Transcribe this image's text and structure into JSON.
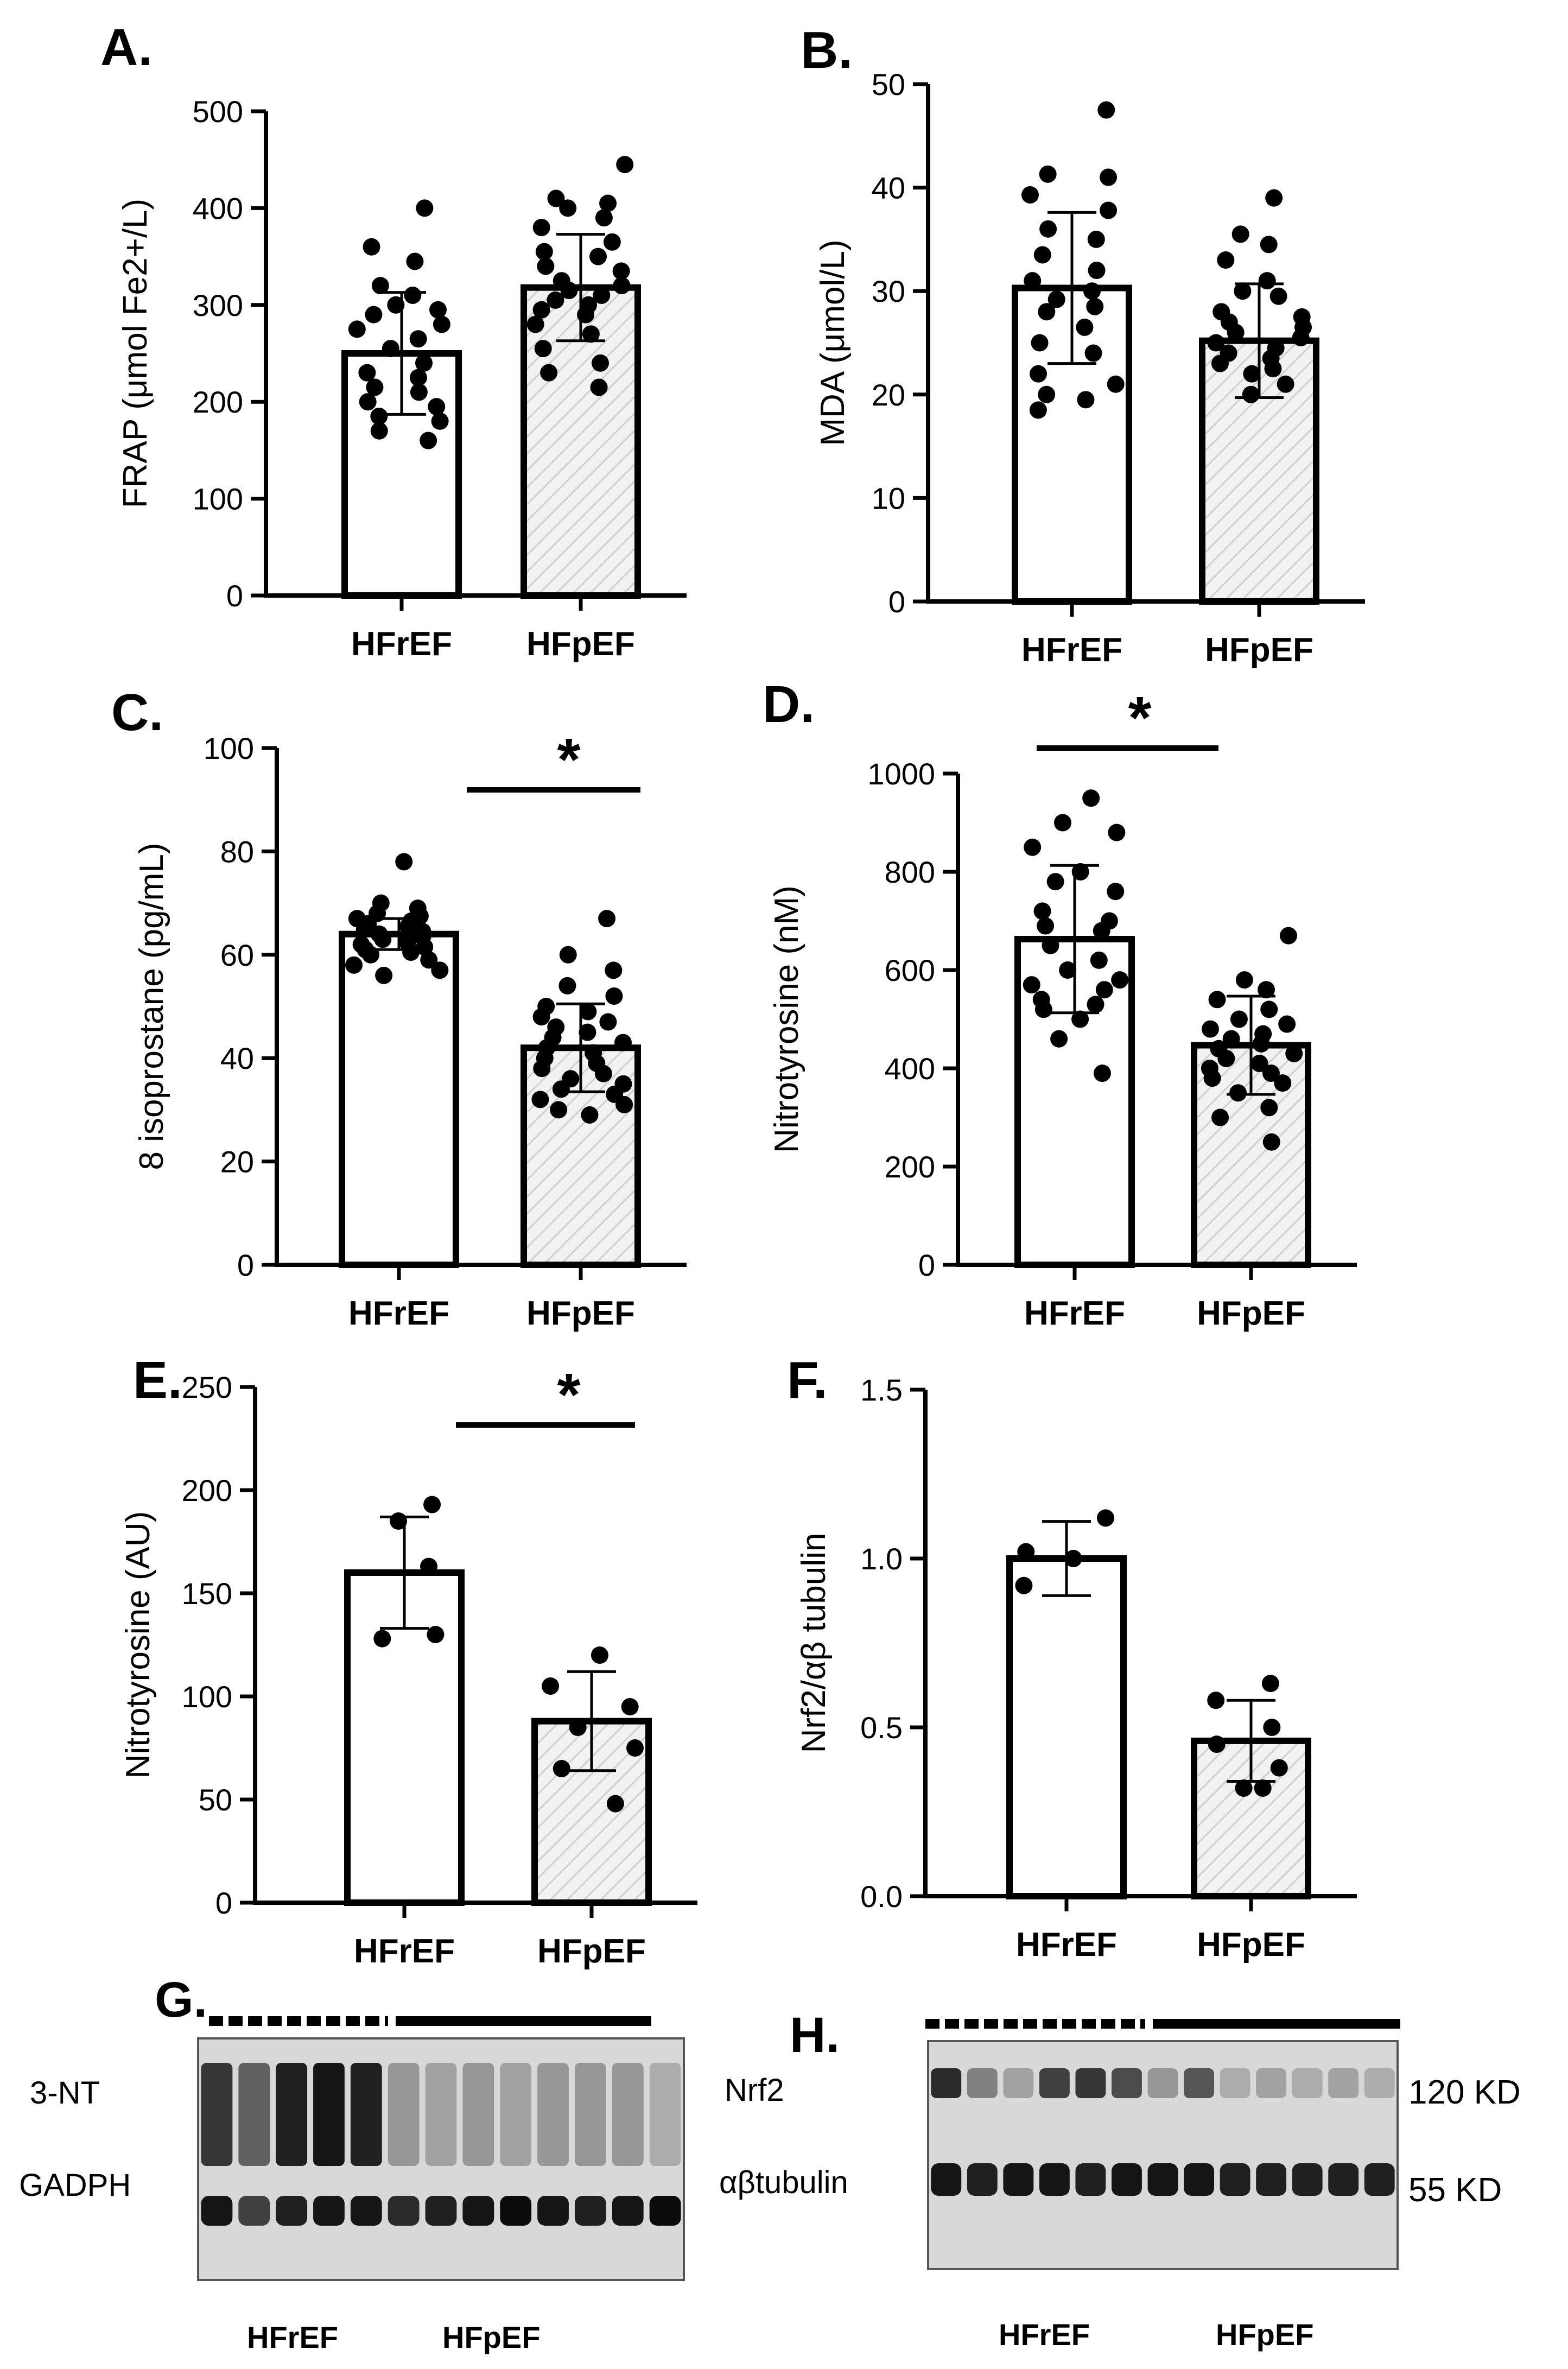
{
  "figure": {
    "group_labels": [
      "HFrEF",
      "HFpEF"
    ],
    "colors": {
      "ink": "#000000",
      "hatch_fill": "#f2f2f2",
      "hatch_stroke": "#cfcfcf",
      "blot_bg": "#d8d8d8"
    }
  },
  "chart_data": [
    {
      "panel": "A.",
      "type": "bar",
      "ylabel": "FRAP (μmol Fe2+/L)",
      "categories": [
        "HFrEF",
        "HFpEF"
      ],
      "ylim": [
        0,
        500
      ],
      "yticks": [
        0,
        100,
        200,
        300,
        400,
        500
      ],
      "tick_labels": [
        "0",
        "100",
        "200",
        "300",
        "400",
        "500"
      ],
      "values": [
        250,
        318
      ],
      "sd": [
        63,
        55
      ],
      "significance": null,
      "points": [
        [
          400,
          360,
          345,
          320,
          310,
          300,
          295,
          290,
          280,
          275,
          265,
          255,
          240,
          230,
          225,
          215,
          210,
          200,
          195,
          185,
          180,
          170,
          160
        ],
        [
          445,
          410,
          405,
          400,
          390,
          380,
          365,
          355,
          350,
          340,
          335,
          325,
          320,
          315,
          310,
          305,
          300,
          295,
          290,
          280,
          270,
          255,
          240,
          230,
          215
        ]
      ]
    },
    {
      "panel": "B.",
      "type": "bar",
      "ylabel": "MDA (μmol/L)",
      "categories": [
        "HFrEF",
        "HFpEF"
      ],
      "ylim": [
        0,
        50
      ],
      "yticks": [
        0,
        10,
        20,
        30,
        40,
        50
      ],
      "tick_labels": [
        "0",
        "10",
        "20",
        "30",
        "40",
        "50"
      ],
      "values": [
        30.3,
        25.2
      ],
      "sd": [
        7.3,
        5.5
      ],
      "significance": null,
      "points": [
        [
          47.5,
          41.3,
          41.0,
          39.3,
          37.8,
          36.0,
          35.0,
          33.5,
          32.0,
          31.0,
          30.0,
          29.2,
          28.5,
          28.0,
          26.5,
          25.0,
          24.0,
          22.0,
          21.0,
          20.0,
          19.5,
          18.5
        ],
        [
          39.0,
          35.5,
          34.5,
          33.0,
          31.0,
          30.0,
          29.5,
          28.0,
          27.5,
          27.0,
          26.5,
          26.0,
          25.5,
          25.0,
          24.5,
          24.0,
          23.5,
          23.0,
          22.5,
          22.0,
          21.0,
          20.0
        ]
      ]
    },
    {
      "panel": "C.",
      "type": "bar",
      "ylabel": "8 isoprostane (pg/mL)",
      "categories": [
        "HFrEF",
        "HFpEF"
      ],
      "ylim": [
        0,
        100
      ],
      "yticks": [
        0,
        20,
        40,
        60,
        80,
        100
      ],
      "tick_labels": [
        "0",
        "20",
        "40",
        "60",
        "80",
        "100"
      ],
      "values": [
        64,
        42
      ],
      "sd": [
        3,
        8.5
      ],
      "significance": "*",
      "points": [
        [
          78,
          70,
          69,
          68,
          67.5,
          67,
          66.5,
          66,
          65.5,
          65,
          64.5,
          64,
          63.5,
          63,
          62.5,
          62,
          61.5,
          61,
          60.5,
          60,
          59,
          58,
          57,
          56
        ],
        [
          67,
          60,
          57,
          54,
          52,
          50,
          49,
          48,
          47,
          46,
          45,
          44,
          43,
          42,
          41,
          40,
          39,
          38,
          37,
          36,
          35,
          34,
          33,
          32,
          31,
          30,
          29
        ]
      ]
    },
    {
      "panel": "D.",
      "type": "bar",
      "ylabel": "Nitrotyrosine (nM)",
      "categories": [
        "HFrEF",
        "HFpEF"
      ],
      "ylim": [
        0,
        1000
      ],
      "yticks": [
        0,
        200,
        400,
        600,
        800,
        1000
      ],
      "tick_labels": [
        "0",
        "200",
        "400",
        "600",
        "800",
        "1000"
      ],
      "values": [
        663,
        447
      ],
      "sd": [
        150,
        100
      ],
      "significance": "*",
      "points": [
        [
          950,
          900,
          880,
          850,
          800,
          780,
          760,
          720,
          700,
          690,
          680,
          650,
          620,
          600,
          580,
          570,
          560,
          540,
          530,
          520,
          500,
          460,
          390
        ],
        [
          670,
          580,
          560,
          540,
          520,
          500,
          490,
          480,
          470,
          460,
          450,
          440,
          430,
          420,
          410,
          400,
          390,
          380,
          370,
          350,
          320,
          300,
          250
        ]
      ]
    },
    {
      "panel": "E.",
      "type": "bar",
      "ylabel": "Nitrotyrosine (AU)",
      "categories": [
        "HFrEF",
        "HFpEF"
      ],
      "ylim": [
        0,
        250
      ],
      "yticks": [
        0,
        50,
        100,
        150,
        200,
        250
      ],
      "tick_labels": [
        "0",
        "50",
        "100",
        "150",
        "200",
        "250"
      ],
      "values": [
        160,
        88
      ],
      "sd": [
        27,
        24
      ],
      "significance": "*",
      "points": [
        [
          193,
          185,
          163,
          128,
          130
        ],
        [
          120,
          105,
          95,
          85,
          75,
          65,
          48
        ]
      ]
    },
    {
      "panel": "F.",
      "type": "bar",
      "ylabel": "Nrf2/αβ tubulin",
      "categories": [
        "HFrEF",
        "HFpEF"
      ],
      "ylim": [
        0,
        1.5
      ],
      "yticks": [
        0,
        0.5,
        1.0,
        1.5
      ],
      "tick_labels": [
        "0.0",
        "0.5",
        "1.0",
        "1.5"
      ],
      "values": [
        1.0,
        0.46
      ],
      "sd": [
        0.11,
        0.12
      ],
      "significance": null,
      "points": [
        [
          1.12,
          1.02,
          1.0,
          0.92
        ],
        [
          0.63,
          0.58,
          0.5,
          0.45,
          0.38,
          0.32,
          0.32
        ]
      ]
    }
  ],
  "blots": {
    "G": {
      "panel_label": "G.",
      "left_labels": [
        "3-NT",
        "GADPH"
      ],
      "group_labels": [
        "HFrEF",
        "HFpEF"
      ],
      "lanes": 13,
      "band1": [
        0.75,
        0.55,
        0.85,
        0.9,
        0.85,
        0.3,
        0.25,
        0.3,
        0.25,
        0.3,
        0.3,
        0.3,
        0.2
      ],
      "band2": [
        0.9,
        0.7,
        0.85,
        0.9,
        0.9,
        0.8,
        0.85,
        0.9,
        0.95,
        0.9,
        0.85,
        0.9,
        0.95
      ]
    },
    "H": {
      "panel_label": "H.",
      "left_labels": [
        "Nrf2",
        "αβtubulin"
      ],
      "right_labels": [
        "120 KD",
        "55 KD"
      ],
      "group_labels": [
        "HFrEF",
        "HFpEF"
      ],
      "lanes": 13,
      "band1": [
        0.8,
        0.4,
        0.25,
        0.7,
        0.75,
        0.65,
        0.3,
        0.6,
        0.2,
        0.25,
        0.2,
        0.25,
        0.2
      ],
      "band2": [
        0.9,
        0.85,
        0.9,
        0.9,
        0.85,
        0.9,
        0.9,
        0.9,
        0.85,
        0.85,
        0.85,
        0.85,
        0.85
      ]
    }
  }
}
